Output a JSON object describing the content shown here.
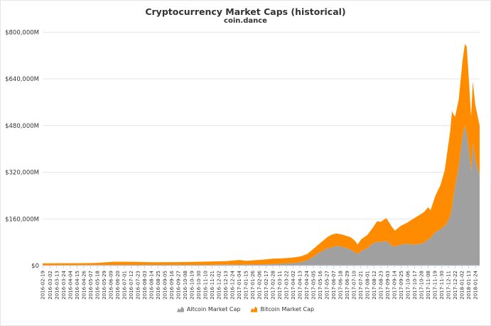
{
  "chart_data": {
    "type": "area",
    "stacked": true,
    "title": "Cryptocurrency Market Caps (historical)",
    "subtitle": "coin.dance",
    "xlabel": "",
    "ylabel": "",
    "ylim": [
      0,
      830000
    ],
    "y_ticks": [
      {
        "value": 0,
        "label": "$0"
      },
      {
        "value": 160000,
        "label": "$160,000M"
      },
      {
        "value": 320000,
        "label": "$320,000M"
      },
      {
        "value": 480000,
        "label": "$480,000M"
      },
      {
        "value": 640000,
        "label": "$640,000M"
      },
      {
        "value": 800000,
        "label": "$800,000M"
      }
    ],
    "x_tick_labels": [
      "2016-02-19",
      "2016-03-02",
      "2016-03-13",
      "2016-03-24",
      "2016-04-04",
      "2016-04-15",
      "2016-04-26",
      "2016-05-07",
      "2016-05-18",
      "2016-05-29",
      "2016-06-09",
      "2016-06-20",
      "2016-07-01",
      "2016-07-12",
      "2016-07-23",
      "2016-08-03",
      "2016-08-14",
      "2016-08-25",
      "2016-09-05",
      "2016-09-16",
      "2016-09-27",
      "2016-10-08",
      "2016-10-19",
      "2016-10-30",
      "2016-11-10",
      "2016-11-21",
      "2016-12-02",
      "2016-12-13",
      "2016-12-24",
      "2017-01-04",
      "2017-01-15",
      "2017-01-26",
      "2017-02-06",
      "2017-02-17",
      "2017-02-28",
      "2017-03-11",
      "2017-03-22",
      "2017-04-02",
      "2017-04-13",
      "2017-04-24",
      "2017-05-05",
      "2017-05-16",
      "2017-05-27",
      "2017-06-07",
      "2017-06-18",
      "2017-06-29",
      "2017-07-10",
      "2017-07-21",
      "2017-08-01",
      "2017-08-12",
      "2017-08-23",
      "2017-09-03",
      "2017-09-14",
      "2017-09-25",
      "2017-10-06",
      "2017-10-17",
      "2017-10-28",
      "2017-11-08",
      "2017-11-19",
      "2017-11-30",
      "2017-12-11",
      "2017-12-22",
      "2018-01-02",
      "2018-01-13",
      "2018-01-24"
    ],
    "x": [
      "2016-02-19",
      "2016-03-15",
      "2016-04-15",
      "2016-05-15",
      "2016-06-15",
      "2016-07-15",
      "2016-08-15",
      "2016-09-15",
      "2016-10-15",
      "2016-11-15",
      "2016-12-15",
      "2017-01-05",
      "2017-01-15",
      "2017-02-01",
      "2017-02-15",
      "2017-03-01",
      "2017-03-15",
      "2017-04-01",
      "2017-04-15",
      "2017-04-25",
      "2017-05-05",
      "2017-05-15",
      "2017-05-22",
      "2017-05-28",
      "2017-06-05",
      "2017-06-12",
      "2017-06-20",
      "2017-06-28",
      "2017-07-05",
      "2017-07-12",
      "2017-07-16",
      "2017-07-22",
      "2017-08-01",
      "2017-08-10",
      "2017-08-17",
      "2017-08-23",
      "2017-09-01",
      "2017-09-10",
      "2017-09-15",
      "2017-09-25",
      "2017-10-05",
      "2017-10-12",
      "2017-10-20",
      "2017-11-01",
      "2017-11-08",
      "2017-11-12",
      "2017-11-20",
      "2017-11-28",
      "2017-12-05",
      "2017-12-10",
      "2017-12-14",
      "2017-12-17",
      "2017-12-19",
      "2017-12-22",
      "2017-12-28",
      "2018-01-03",
      "2018-01-07",
      "2018-01-10",
      "2018-01-14",
      "2018-01-17",
      "2018-01-20",
      "2018-01-24",
      "2018-01-28",
      "2018-01-31"
    ],
    "series": [
      {
        "name": "Altcoin Market Cap",
        "color": "#a0a0a0",
        "values": [
          1000,
          1500,
          1500,
          2000,
          2500,
          2500,
          2500,
          2500,
          2500,
          2500,
          3000,
          3500,
          3000,
          3500,
          4000,
          5000,
          7000,
          8000,
          12000,
          18000,
          30000,
          45000,
          52000,
          60000,
          62000,
          68000,
          65000,
          60000,
          55000,
          45000,
          40000,
          50000,
          60000,
          75000,
          82000,
          80000,
          85000,
          68000,
          65000,
          72000,
          75000,
          72000,
          72000,
          78000,
          90000,
          95000,
          115000,
          125000,
          135000,
          150000,
          170000,
          200000,
          230000,
          270000,
          340000,
          440000,
          480000,
          450000,
          390000,
          320000,
          420000,
          360000,
          330000,
          310000
        ]
      },
      {
        "name": "Bitcoin Market Cap",
        "color": "#ff8c00",
        "values": [
          6500,
          6800,
          6700,
          7000,
          11000,
          10500,
          9000,
          9500,
          10000,
          11500,
          12500,
          16000,
          13500,
          15500,
          17000,
          19000,
          18000,
          19500,
          20000,
          22000,
          27000,
          30000,
          35000,
          38000,
          45000,
          42000,
          42000,
          42000,
          42000,
          40000,
          32000,
          40000,
          45000,
          55000,
          70000,
          70000,
          78000,
          65000,
          55000,
          65000,
          72000,
          85000,
          95000,
          105000,
          110000,
          95000,
          125000,
          150000,
          190000,
          250000,
          290000,
          330000,
          290000,
          240000,
          230000,
          260000,
          280000,
          300000,
          230000,
          190000,
          210000,
          190000,
          180000,
          170000
        ]
      }
    ],
    "legend": {
      "position": "bottom-center"
    },
    "grid": {
      "horizontal": true,
      "vertical": false
    }
  }
}
